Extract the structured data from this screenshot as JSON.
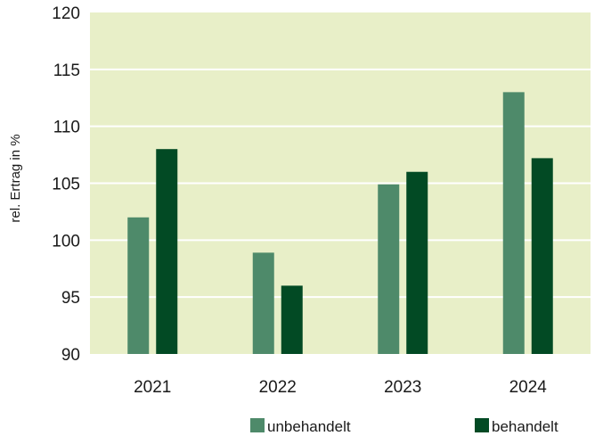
{
  "chart_data": {
    "type": "bar",
    "categories": [
      "2021",
      "2022",
      "2023",
      "2024"
    ],
    "series": [
      {
        "name": "unbehandelt",
        "color": "#4e8a6a",
        "values": [
          102,
          98.9,
          104.9,
          113
        ]
      },
      {
        "name": "behandelt",
        "color": "#024a24",
        "values": [
          108,
          96,
          106,
          107.2
        ]
      }
    ],
    "title": "",
    "xlabel": "",
    "ylabel": "rel. Ertrag in %",
    "ylim": [
      90,
      120
    ],
    "yticks": [
      90,
      95,
      100,
      105,
      110,
      115,
      120
    ],
    "grid": true,
    "plot_background": "#e8efc8",
    "grid_color": "#ffffff",
    "legend_position": "bottom"
  }
}
